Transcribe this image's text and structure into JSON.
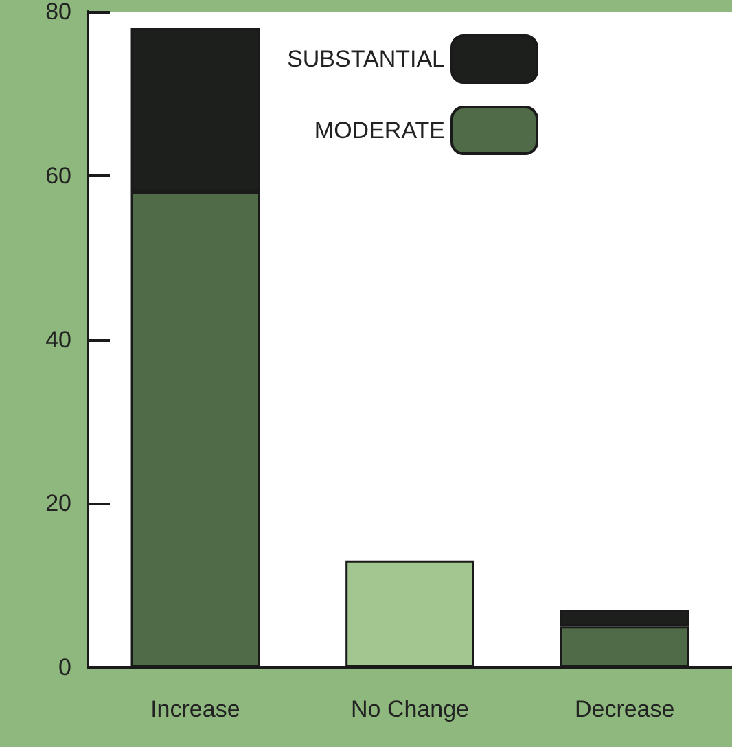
{
  "chart_data": {
    "type": "bar",
    "stacked": true,
    "categories": [
      "Increase",
      "No Change",
      "Decrease"
    ],
    "series": [
      {
        "name": "MODERATE",
        "color": "#4f6b48",
        "colors": [
          "#4f6b48",
          "#a3c58f",
          "#4f6b48"
        ],
        "values": [
          58,
          13,
          5
        ]
      },
      {
        "name": "SUBSTANTIAL",
        "color": "#1c1f1c",
        "values": [
          20,
          null,
          2
        ]
      }
    ],
    "ylim": [
      0,
      80
    ],
    "yticks": [
      0,
      20,
      40,
      60,
      80
    ],
    "grid": false,
    "legend": "top right"
  }
}
